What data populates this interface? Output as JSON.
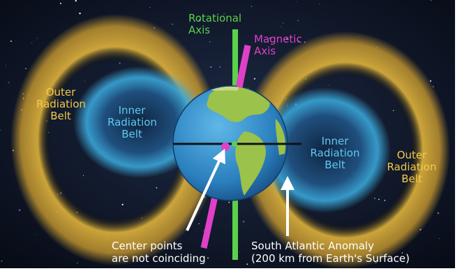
{
  "labels": {
    "rotational_axis": [
      "Rotational",
      "Axis"
    ],
    "magnetic_axis": [
      "Magnetic",
      "Axis"
    ],
    "outer_belt_left": [
      "Outer",
      "Radiation",
      "Belt"
    ],
    "inner_belt_left": [
      "Inner",
      "Radiation",
      "Belt"
    ],
    "inner_belt_right": [
      "Inner",
      "Radiation",
      "Belt"
    ],
    "outer_belt_right": [
      "Outer",
      "Radiation",
      "Belt"
    ],
    "center_points": [
      "Center points",
      "are not coinciding"
    ],
    "south_atlantic": [
      "South Atlantic Anomaly",
      "(200 km from Earth's Surface)"
    ]
  },
  "colors": {
    "space": "#0c1424",
    "outer_belt": "#e0b43c",
    "inner_belt": "#3aa6d8",
    "rotational_axis": "#5bd04b",
    "magnetic_axis": "#e040c8",
    "ocean": "#2f8fc8",
    "land": "#9bc24a",
    "arrow": "#ffffff"
  }
}
